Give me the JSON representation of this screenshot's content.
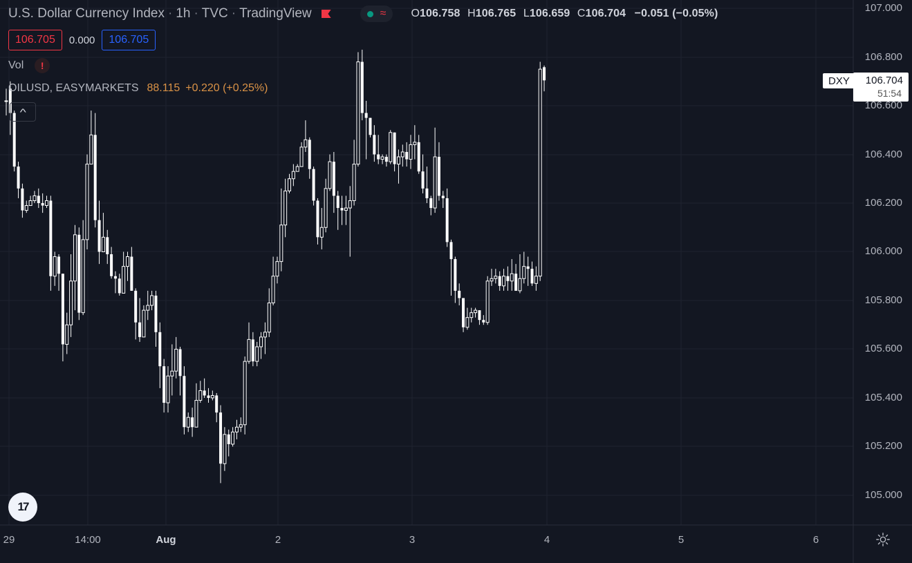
{
  "header": {
    "symbol_name": "U.S. Dollar Currency Index",
    "interval": "1h",
    "exchange": "TVC",
    "source": "TradingView",
    "wave_glyph": "≈",
    "ohlc": {
      "o_label": "O",
      "o": "106.758",
      "h_label": "H",
      "h": "106.765",
      "l_label": "L",
      "l": "106.659",
      "c_label": "C",
      "c": "106.704",
      "change": "−0.051 (−0.05%)"
    }
  },
  "order_box": {
    "sell": "106.705",
    "spread": "0.000",
    "buy": "106.705"
  },
  "indicators": {
    "vol_label": "Vol",
    "warn_glyph": "!",
    "oil_label": "OILUSD, EASYMARKETS",
    "oil_value": "88.115",
    "oil_change": "+0.220 (+0.25%)"
  },
  "collapse_glyph": "^",
  "logo_text": "17",
  "price_axis": {
    "ticks": [
      "107.000",
      "106.800",
      "106.600",
      "106.400",
      "106.200",
      "106.000",
      "105.800",
      "105.600",
      "105.400",
      "105.200",
      "105.000"
    ],
    "current_symbol": "DXY",
    "current_price": "106.704",
    "countdown": "51:54"
  },
  "time_axis": {
    "ticks": [
      {
        "label": "29",
        "bold": false
      },
      {
        "label": "14:00",
        "bold": false
      },
      {
        "label": "Aug",
        "bold": true
      },
      {
        "label": "2",
        "bold": false
      },
      {
        "label": "3",
        "bold": false
      },
      {
        "label": "4",
        "bold": false
      },
      {
        "label": "5",
        "bold": false
      },
      {
        "label": "6",
        "bold": false
      }
    ]
  },
  "colors": {
    "background": "#131722",
    "grid": "#1f2330",
    "candle": "#ffffff",
    "down_accent": "#f23645",
    "up_accent": "#2962ff",
    "indicator_orange": "#f0a04b"
  },
  "chart_data": {
    "type": "candlestick",
    "ylim": [
      104.95,
      107.05
    ],
    "series": [
      {
        "name": "U.S. Dollar Currency Index",
        "candles": [
          [
            106.62,
            106.62,
            106.67,
            106.56
          ],
          [
            106.67,
            106.57,
            106.7,
            106.48
          ],
          [
            106.57,
            106.35,
            106.58,
            106.33
          ],
          [
            106.35,
            106.26,
            106.37,
            106.22
          ],
          [
            106.26,
            106.17,
            106.28,
            106.14
          ],
          [
            106.17,
            106.19,
            106.21,
            106.16
          ],
          [
            106.19,
            106.21,
            106.23,
            106.19
          ],
          [
            106.21,
            106.23,
            106.25,
            106.2
          ],
          [
            106.23,
            106.2,
            106.26,
            106.18
          ],
          [
            106.2,
            106.19,
            106.24,
            106.16
          ],
          [
            106.19,
            106.21,
            106.23,
            106.18
          ],
          [
            106.21,
            105.9,
            106.23,
            105.84
          ],
          [
            105.9,
            105.98,
            106.0,
            105.86
          ],
          [
            105.98,
            105.91,
            105.99,
            105.84
          ],
          [
            105.91,
            105.62,
            105.91,
            105.55
          ],
          [
            105.62,
            105.7,
            105.75,
            105.58
          ],
          [
            105.7,
            105.88,
            105.99,
            105.65
          ],
          [
            105.88,
            106.07,
            106.11,
            105.76
          ],
          [
            106.07,
            105.75,
            106.1,
            105.72
          ],
          [
            105.75,
            106.05,
            106.13,
            105.74
          ],
          [
            106.05,
            106.36,
            106.4,
            106.01
          ],
          [
            106.36,
            106.48,
            106.58,
            106.46
          ],
          [
            106.48,
            106.13,
            106.57,
            106.1
          ],
          [
            106.13,
            106.0,
            106.21,
            105.95
          ],
          [
            106.0,
            106.06,
            106.16,
            106.0
          ],
          [
            106.06,
            105.99,
            106.09,
            105.95
          ],
          [
            105.99,
            105.9,
            106.02,
            105.89
          ],
          [
            105.9,
            105.89,
            105.92,
            105.83
          ],
          [
            105.89,
            105.83,
            105.91,
            105.82
          ],
          [
            105.83,
            105.94,
            106.0,
            105.89
          ],
          [
            105.94,
            105.98,
            106.0,
            105.88
          ],
          [
            105.98,
            105.84,
            106.02,
            105.84
          ],
          [
            105.84,
            105.71,
            105.85,
            105.64
          ],
          [
            105.71,
            105.65,
            105.81,
            105.63
          ],
          [
            105.65,
            105.76,
            105.78,
            105.65
          ],
          [
            105.76,
            105.78,
            105.84,
            105.72
          ],
          [
            105.78,
            105.82,
            105.84,
            105.76
          ],
          [
            105.82,
            105.67,
            105.84,
            105.61
          ],
          [
            105.67,
            105.53,
            105.71,
            105.44
          ],
          [
            105.53,
            105.38,
            105.56,
            105.34
          ],
          [
            105.38,
            105.49,
            105.53,
            105.34
          ],
          [
            105.49,
            105.51,
            105.62,
            105.41
          ],
          [
            105.51,
            105.6,
            105.65,
            105.48
          ],
          [
            105.6,
            105.49,
            105.61,
            105.41
          ],
          [
            105.49,
            105.28,
            105.53,
            105.25
          ],
          [
            105.28,
            105.32,
            105.34,
            105.26
          ],
          [
            105.32,
            105.28,
            105.36,
            105.24
          ],
          [
            105.28,
            105.39,
            105.46,
            105.29
          ],
          [
            105.39,
            105.43,
            105.47,
            105.38
          ],
          [
            105.43,
            105.41,
            105.48,
            105.4
          ],
          [
            105.41,
            105.4,
            105.44,
            105.38
          ],
          [
            105.4,
            105.41,
            105.43,
            105.39
          ],
          [
            105.41,
            105.34,
            105.42,
            105.3
          ],
          [
            105.34,
            105.13,
            105.37,
            105.05
          ],
          [
            105.13,
            105.25,
            105.28,
            105.1
          ],
          [
            105.25,
            105.21,
            105.27,
            105.16
          ],
          [
            105.21,
            105.26,
            105.28,
            105.2
          ],
          [
            105.26,
            105.28,
            105.31,
            105.23
          ],
          [
            105.28,
            105.29,
            105.32,
            105.26
          ],
          [
            105.29,
            105.55,
            105.57,
            105.25
          ],
          [
            105.55,
            105.64,
            105.71,
            105.54
          ],
          [
            105.64,
            105.55,
            105.67,
            105.53
          ],
          [
            105.55,
            105.61,
            105.63,
            105.53
          ],
          [
            105.61,
            105.65,
            105.67,
            105.56
          ],
          [
            105.65,
            105.67,
            105.71,
            105.58
          ],
          [
            105.67,
            105.79,
            105.85,
            105.65
          ],
          [
            105.79,
            105.9,
            105.98,
            105.78
          ],
          [
            105.9,
            105.96,
            105.98,
            105.87
          ],
          [
            105.96,
            106.11,
            106.26,
            105.92
          ],
          [
            106.11,
            106.25,
            106.3,
            106.06
          ],
          [
            106.25,
            106.3,
            106.32,
            106.24
          ],
          [
            106.3,
            106.33,
            106.36,
            106.27
          ],
          [
            106.33,
            106.35,
            106.36,
            106.33
          ],
          [
            106.35,
            106.43,
            106.45,
            106.4
          ],
          [
            106.43,
            106.46,
            106.54,
            106.41
          ],
          [
            106.46,
            106.34,
            106.47,
            106.3
          ],
          [
            106.34,
            106.21,
            106.35,
            106.19
          ],
          [
            106.21,
            106.06,
            106.22,
            106.03
          ],
          [
            106.06,
            106.1,
            106.18,
            106.01
          ],
          [
            106.1,
            106.26,
            106.3,
            106.08
          ],
          [
            106.26,
            106.37,
            106.4,
            106.25
          ],
          [
            106.37,
            106.23,
            106.41,
            106.16
          ],
          [
            106.23,
            106.18,
            106.25,
            106.09
          ],
          [
            106.18,
            106.17,
            106.23,
            106.11
          ],
          [
            106.17,
            106.18,
            106.23,
            106.11
          ],
          [
            106.18,
            106.21,
            106.27,
            105.98
          ],
          [
            106.21,
            106.36,
            106.46,
            106.19
          ],
          [
            106.36,
            106.78,
            106.82,
            106.35
          ],
          [
            106.78,
            106.57,
            106.83,
            106.54
          ],
          [
            106.57,
            106.55,
            106.62,
            106.38
          ],
          [
            106.55,
            106.48,
            106.55,
            106.47
          ],
          [
            106.48,
            106.4,
            106.52,
            106.37
          ],
          [
            106.4,
            106.38,
            106.48,
            106.36
          ],
          [
            106.38,
            106.39,
            106.4,
            106.36
          ],
          [
            106.39,
            106.37,
            106.4,
            106.35
          ],
          [
            106.37,
            106.49,
            106.5,
            106.36
          ],
          [
            106.49,
            106.36,
            106.49,
            106.33
          ],
          [
            106.36,
            106.39,
            106.42,
            106.28
          ],
          [
            106.39,
            106.41,
            106.44,
            106.35
          ],
          [
            106.41,
            106.38,
            106.45,
            106.35
          ],
          [
            106.38,
            106.44,
            106.48,
            106.34
          ],
          [
            106.44,
            106.45,
            106.52,
            106.38
          ],
          [
            106.45,
            106.33,
            106.48,
            106.32
          ],
          [
            106.33,
            106.26,
            106.4,
            106.24
          ],
          [
            106.26,
            106.22,
            106.35,
            106.2
          ],
          [
            106.22,
            106.18,
            106.23,
            106.15
          ],
          [
            106.18,
            106.39,
            106.51,
            106.16
          ],
          [
            106.39,
            106.23,
            106.45,
            106.21
          ],
          [
            106.23,
            106.22,
            106.25,
            106.18
          ],
          [
            106.22,
            106.04,
            106.26,
            106.02
          ],
          [
            106.04,
            105.97,
            106.05,
            105.82
          ],
          [
            105.97,
            105.84,
            105.98,
            105.79
          ],
          [
            105.84,
            105.81,
            105.87,
            105.78
          ],
          [
            105.81,
            105.69,
            105.81,
            105.67
          ],
          [
            105.69,
            105.73,
            105.77,
            105.68
          ],
          [
            105.73,
            105.75,
            105.77,
            105.71
          ],
          [
            105.75,
            105.76,
            105.77,
            105.73
          ],
          [
            105.76,
            105.72,
            105.76,
            105.7
          ],
          [
            105.72,
            105.71,
            105.74,
            105.7
          ],
          [
            105.71,
            105.88,
            105.9,
            105.7
          ],
          [
            105.88,
            105.89,
            105.93,
            105.86
          ],
          [
            105.89,
            105.9,
            105.93,
            105.87
          ],
          [
            105.9,
            105.86,
            105.92,
            105.84
          ],
          [
            105.86,
            105.9,
            105.93,
            105.84
          ],
          [
            105.9,
            105.88,
            105.94,
            105.84
          ],
          [
            105.88,
            105.91,
            105.97,
            105.84
          ],
          [
            105.91,
            105.84,
            105.95,
            105.84
          ],
          [
            105.84,
            105.89,
            105.99,
            105.83
          ],
          [
            105.89,
            105.94,
            106.0,
            105.87
          ],
          [
            105.94,
            105.93,
            105.98,
            105.86
          ],
          [
            105.93,
            105.87,
            105.96,
            105.86
          ],
          [
            105.87,
            105.9,
            105.94,
            105.84
          ],
          [
            105.9,
            106.75,
            106.78,
            105.88
          ],
          [
            106.758,
            106.704,
            106.765,
            106.659
          ]
        ]
      }
    ]
  }
}
